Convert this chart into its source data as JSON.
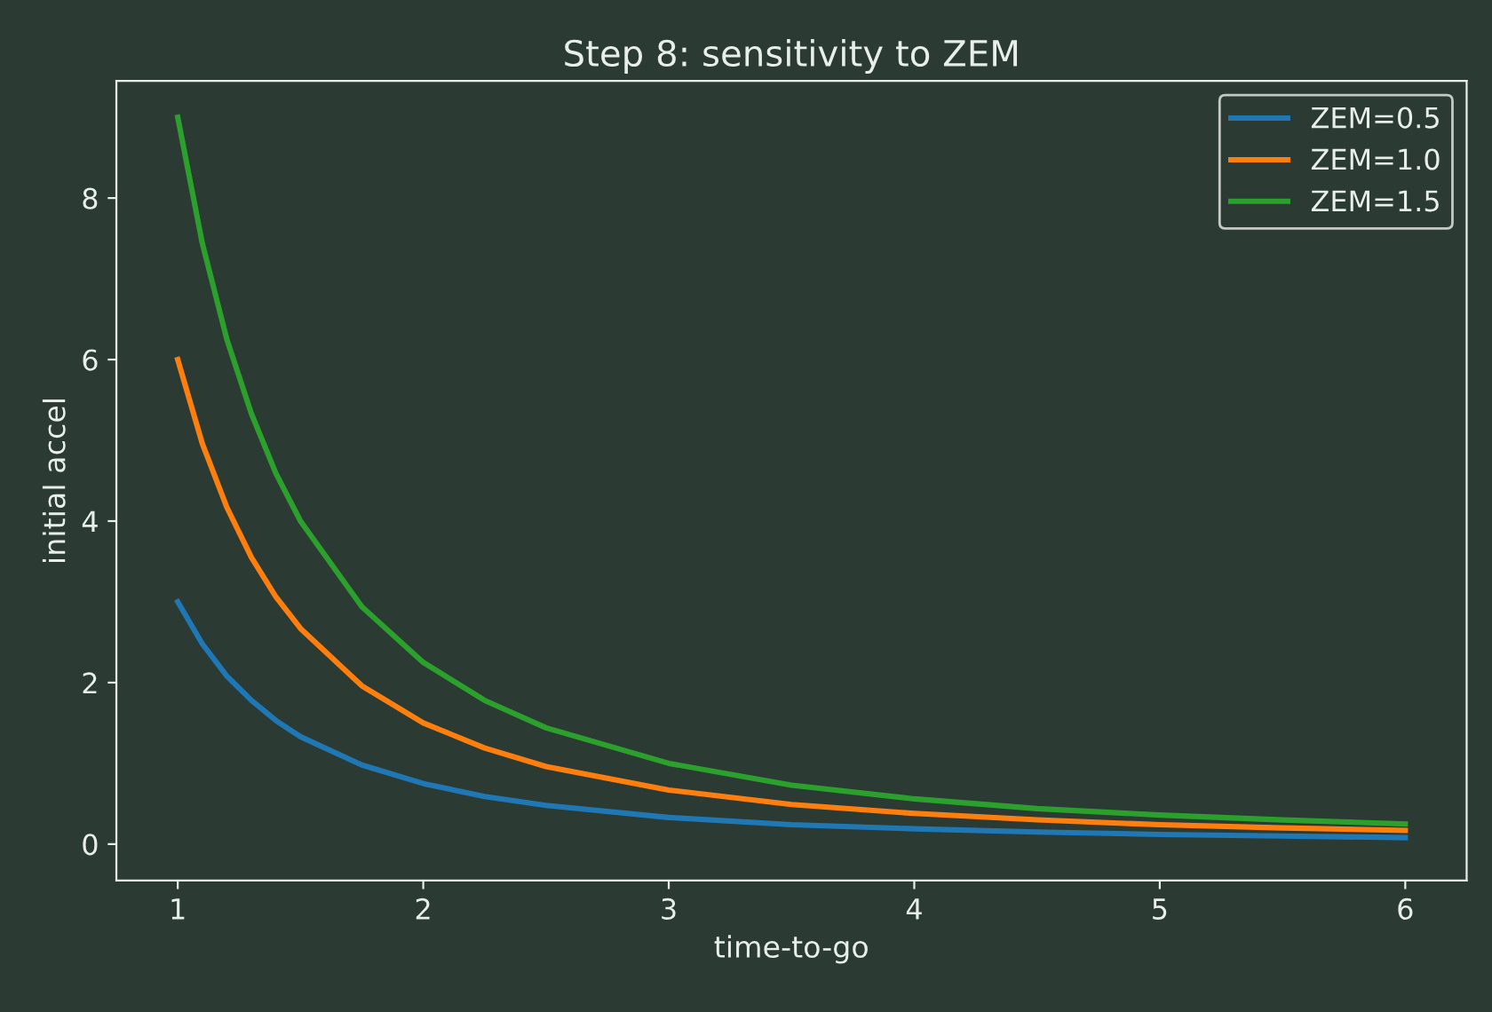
{
  "chart_data": {
    "type": "line",
    "title": "Step 8: sensitivity to ZEM",
    "xlabel": "time-to-go",
    "ylabel": "initial accel",
    "x": [
      1,
      1.1,
      1.2,
      1.3,
      1.4,
      1.5,
      1.75,
      2,
      2.25,
      2.5,
      3,
      3.5,
      4,
      4.5,
      5,
      5.5,
      6
    ],
    "series": [
      {
        "name": "ZEM=0.5",
        "color": "#1f77b4",
        "values": [
          3,
          2.48,
          2.08,
          1.78,
          1.53,
          1.33,
          0.98,
          0.75,
          0.59,
          0.48,
          0.33,
          0.24,
          0.19,
          0.15,
          0.12,
          0.1,
          0.08
        ]
      },
      {
        "name": "ZEM=1.0",
        "color": "#ff7f0e",
        "values": [
          6,
          4.96,
          4.17,
          3.55,
          3.06,
          2.67,
          1.96,
          1.5,
          1.19,
          0.96,
          0.67,
          0.49,
          0.38,
          0.3,
          0.24,
          0.2,
          0.17
        ]
      },
      {
        "name": "ZEM=1.5",
        "color": "#2ca02c",
        "values": [
          9,
          7.44,
          6.25,
          5.33,
          4.59,
          4,
          2.94,
          2.25,
          1.78,
          1.44,
          1,
          0.73,
          0.56,
          0.44,
          0.36,
          0.3,
          0.25
        ]
      }
    ],
    "xlim": [
      0.75,
      6.25
    ],
    "ylim": [
      -0.45,
      9.45
    ],
    "xticks": [
      1,
      2,
      3,
      4,
      5,
      6
    ],
    "yticks": [
      0,
      2,
      4,
      6,
      8
    ],
    "grid": false,
    "legend": "top right",
    "marker": "none",
    "line_style": "solid"
  }
}
